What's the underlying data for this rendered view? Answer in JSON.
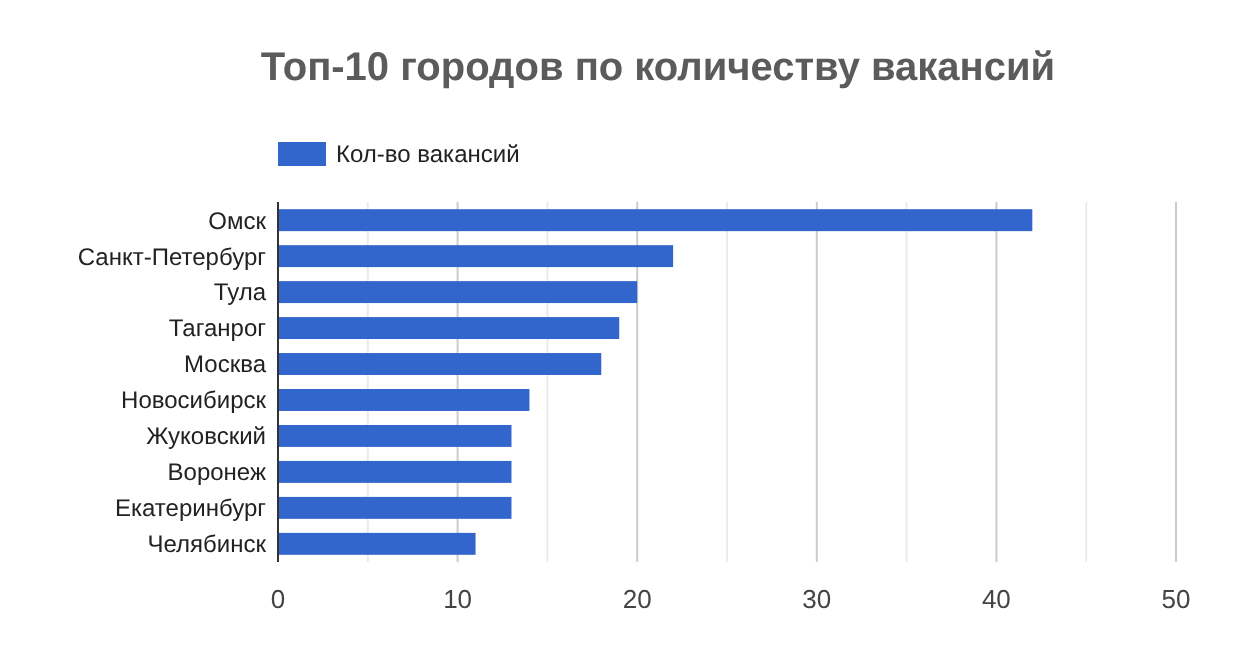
{
  "chart_data": {
    "type": "bar",
    "orientation": "horizontal",
    "title": "Топ-10 городов по количеству  вакансий",
    "categories": [
      "Омск",
      "Санкт-Петербург",
      "Тула",
      "Таганрог",
      "Москва",
      "Новосибирск",
      "Жуковский",
      "Воронеж",
      "Екатеринбург",
      "Челябинск"
    ],
    "series": [
      {
        "name": "Кол-во вакансий",
        "color": "#3366cc",
        "values": [
          42,
          22,
          20,
          19,
          18,
          14,
          13,
          13,
          13,
          11
        ]
      }
    ],
    "xlim": [
      0,
      50
    ],
    "xticks": [
      0,
      {
        "value": 5,
        "label": null
      },
      10,
      {
        "value": 15,
        "label": null
      },
      20,
      {
        "value": 25,
        "label": null
      },
      30,
      {
        "value": 35,
        "label": null
      },
      40,
      {
        "value": 45,
        "label": null
      },
      50
    ],
    "grid": "x",
    "legend": "top left"
  }
}
